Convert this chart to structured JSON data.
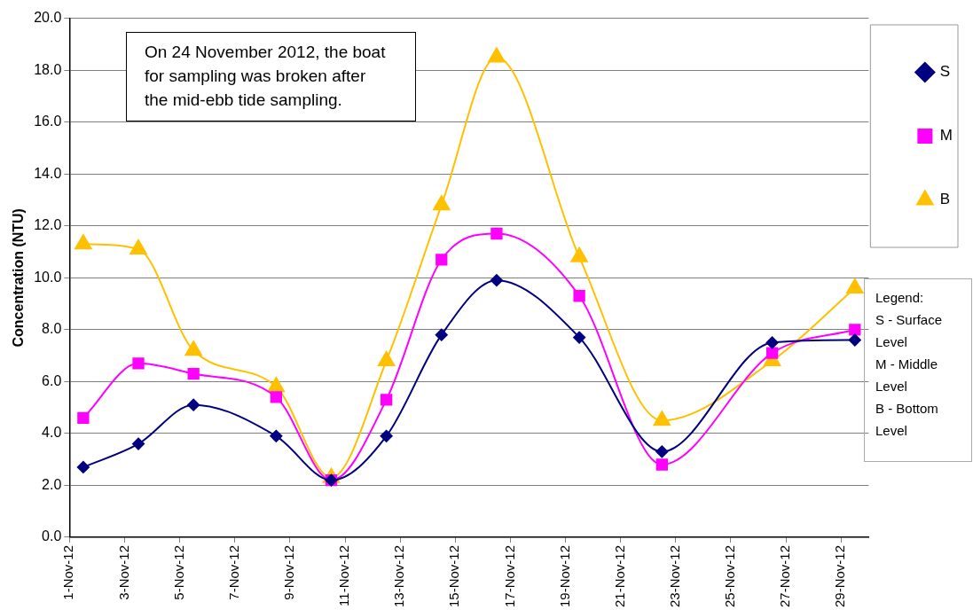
{
  "chart_data": {
    "type": "line",
    "ylabel": "Concentration (NTU)",
    "x": [
      "2012-11-01T12:00",
      "2012-11-03T12:00",
      "2012-11-05T12:00",
      "2012-11-08T12:00",
      "2012-11-10T12:00",
      "2012-11-12T12:00",
      "2012-11-14T12:00",
      "2012-11-16T12:00",
      "2012-11-19T12:00",
      "2012-11-22T12:00",
      "2012-11-26T12:00",
      "2012-11-29T12:00"
    ],
    "series": [
      {
        "name": "S",
        "color": "#000080",
        "marker": "diamond",
        "values": [
          2.7,
          3.6,
          5.1,
          3.9,
          2.2,
          3.9,
          7.8,
          9.9,
          7.7,
          3.3,
          7.5,
          7.6
        ]
      },
      {
        "name": "M",
        "color": "#ff00ff",
        "marker": "square",
        "values": [
          4.6,
          6.7,
          6.3,
          5.4,
          2.2,
          5.3,
          10.7,
          11.7,
          9.3,
          2.8,
          7.1,
          8.0
        ]
      },
      {
        "name": "B",
        "color": "#ffc000",
        "marker": "triangle",
        "values": [
          11.3,
          11.1,
          7.2,
          5.8,
          2.3,
          6.8,
          12.8,
          18.5,
          10.8,
          4.5,
          6.8,
          9.6
        ]
      }
    ],
    "xlim": [
      "2012-11-01",
      "2012-11-30"
    ],
    "xticks": [
      {
        "value": "2012-11-01",
        "label": "1-Nov-12"
      },
      {
        "value": "2012-11-03",
        "label": "3-Nov-12"
      },
      {
        "value": "2012-11-05",
        "label": "5-Nov-12"
      },
      {
        "value": "2012-11-07",
        "label": "7-Nov-12"
      },
      {
        "value": "2012-11-09",
        "label": "9-Nov-12"
      },
      {
        "value": "2012-11-11",
        "label": "11-Nov-12"
      },
      {
        "value": "2012-11-13",
        "label": "13-Nov-12"
      },
      {
        "value": "2012-11-15",
        "label": "15-Nov-12"
      },
      {
        "value": "2012-11-17",
        "label": "17-Nov-12"
      },
      {
        "value": "2012-11-19",
        "label": "19-Nov-12"
      },
      {
        "value": "2012-11-21",
        "label": "21-Nov-12"
      },
      {
        "value": "2012-11-23",
        "label": "23-Nov-12"
      },
      {
        "value": "2012-11-25",
        "label": "25-Nov-12"
      },
      {
        "value": "2012-11-27",
        "label": "27-Nov-12"
      },
      {
        "value": "2012-11-29",
        "label": "29-Nov-12"
      }
    ],
    "ylim": [
      0,
      20
    ],
    "yticks": [
      {
        "value": 0,
        "label": "0.0"
      },
      {
        "value": 2,
        "label": "2.0"
      },
      {
        "value": 4,
        "label": "4.0"
      },
      {
        "value": 6,
        "label": "6.0"
      },
      {
        "value": 8,
        "label": "8.0"
      },
      {
        "value": 10,
        "label": "10.0"
      },
      {
        "value": 12,
        "label": "12.0"
      },
      {
        "value": 14,
        "label": "14.0"
      },
      {
        "value": 16,
        "label": "16.0"
      },
      {
        "value": 18,
        "label": "18.0"
      },
      {
        "value": 20,
        "label": "20.0"
      }
    ],
    "grid": "y",
    "legend": "top right",
    "line_style": "solid",
    "annotations": [
      "On 24 November 2012, the boat for sampling was broken after the mid-ebb tide sampling.",
      "Legend:\nS - Surface Level\nM - Middle Level\nB - Bottom Level"
    ]
  }
}
